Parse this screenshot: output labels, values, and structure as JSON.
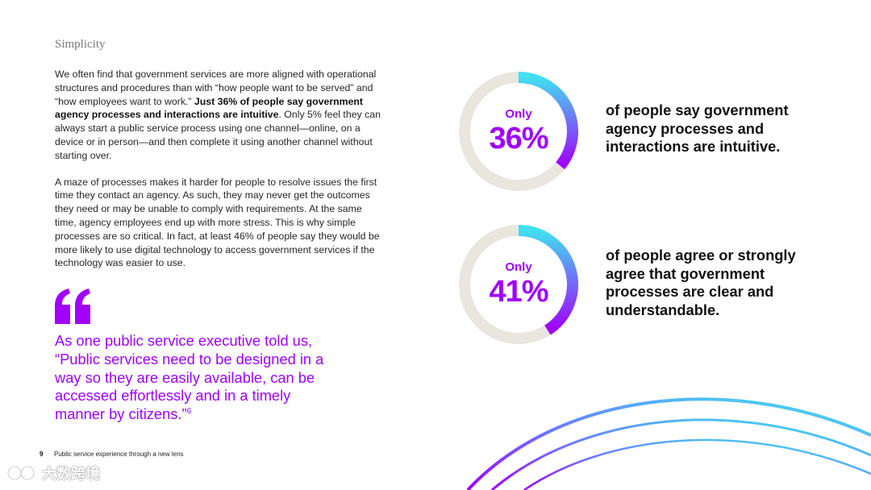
{
  "section_title": "Simplicity",
  "paragraph1": {
    "part1": "We often find that government services are more aligned with operational structures and procedures than with “how people want to be served” and “how employees want to work.” ",
    "bold": "Just 36% of people say government agency processes and interactions are intuitive",
    "part2": ". Only 5% feel they can always start a public service process using one channel—online, on a device or in person—and then complete it using another channel without starting over."
  },
  "paragraph2": "A maze of processes makes it harder for people to resolve issues the first time they contact an agency. As such, they may never get the outcomes they need or may be unable to comply with requirements. At the same time, agency employees end up with more stress. This is why simple processes are so critical. In fact, at least 46% of people say they would be more likely to use digital technology to access government services if the technology was easier to use.",
  "quote": {
    "text": "As one public service executive told us, “Public services need to be designed in a way so they are easily available, can be accessed effortlessly and in a timely manner by citizens.”",
    "footnote": "6"
  },
  "stats": [
    {
      "only_label": "Only",
      "percent_label": "36%",
      "value": 0.36,
      "description": "of people say government agency processes and interactions are intuitive."
    },
    {
      "only_label": "Only",
      "percent_label": "41%",
      "value": 0.41,
      "description": "of people agree or strongly agree that government processes are clear and understandable."
    }
  ],
  "footer": {
    "page_number": "9",
    "document_title": "Public service experience through a new lens"
  },
  "watermark": {
    "text": "大数跨境"
  },
  "colors": {
    "accent": "#a100ff",
    "ring_track": "#e9e6df",
    "ring_start": "#40e0f0",
    "ring_end": "#a100ff"
  },
  "icons": {
    "quote": "quote-mark-icon",
    "watermark": "watermark-logo-icon"
  }
}
